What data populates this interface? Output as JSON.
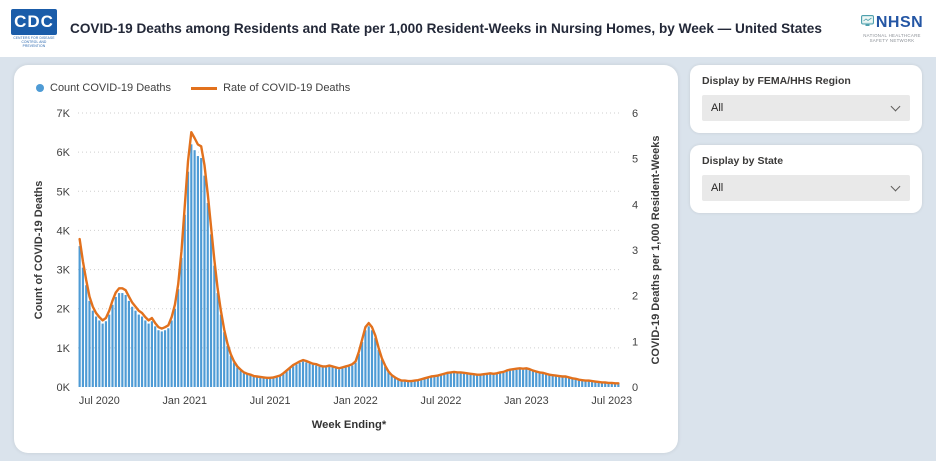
{
  "header": {
    "title": "COVID-19 Deaths among Residents and Rate per 1,000 Resident-Weeks in Nursing Homes, by Week — United States",
    "cdc_logo": {
      "text": "CDC",
      "subtext": "CENTERS FOR DISEASE CONTROL AND PREVENTION"
    },
    "nhsn_logo": {
      "text": "NHSN",
      "subtext_line1": "NATIONAL HEALTHCARE",
      "subtext_line2": "SAFETY NETWORK"
    }
  },
  "filters": [
    {
      "label": "Display by FEMA/HHS Region",
      "value": "All"
    },
    {
      "label": "Display by State",
      "value": "All"
    }
  ],
  "colors": {
    "bar_blue": "#4E9BD5",
    "line_orange": "#E2711D",
    "page_bg": "#DAE3EC",
    "card_bg": "#FFFFFF",
    "footer_bar": "#3D5448",
    "cdc_blue": "#1A5CA9",
    "nhsn_blue": "#2456A4",
    "grid_gray": "#CFCFCF",
    "tick_text": "#3F3F3F"
  },
  "chart_data": {
    "type": "bar",
    "subtype": "combo-bar-line-weekly",
    "title": "",
    "xlabel": "Week Ending*",
    "x_unit": "week",
    "x_start_week_ending": "2020-05-24",
    "x_ticks": [
      {
        "index": 6,
        "label": "Jul 2020"
      },
      {
        "index": 32,
        "label": "Jan 2021"
      },
      {
        "index": 58,
        "label": "Jul 2021"
      },
      {
        "index": 84,
        "label": "Jan 2022"
      },
      {
        "index": 110,
        "label": "Jul 2022"
      },
      {
        "index": 136,
        "label": "Jan 2023"
      },
      {
        "index": 162,
        "label": "Jul 2023"
      }
    ],
    "y_left": {
      "title": "Count of COVID-19 Deaths",
      "min": 0,
      "max": 7000,
      "tick_labels": [
        "0K",
        "1K",
        "2K",
        "3K",
        "4K",
        "5K",
        "6K",
        "7K"
      ]
    },
    "y_right": {
      "title": "COVID-19 Deaths per 1,000 Resident-Weeks",
      "min": 0,
      "max": 6,
      "tick_labels": [
        "0",
        "1",
        "2",
        "3",
        "4",
        "5",
        "6"
      ]
    },
    "grid": "dotted-horizontal-left-axis",
    "legend_position": "top-left",
    "series": [
      {
        "name": "Count COVID-19 Deaths",
        "type": "bar",
        "axis": "left",
        "color": "#4E9BD5",
        "values": [
          3600,
          3050,
          2600,
          2200,
          1950,
          1800,
          1700,
          1620,
          1680,
          1850,
          2100,
          2300,
          2400,
          2400,
          2350,
          2200,
          2050,
          1950,
          1850,
          1800,
          1700,
          1620,
          1680,
          1550,
          1450,
          1420,
          1450,
          1500,
          1700,
          2000,
          2500,
          3300,
          4400,
          5500,
          6200,
          6050,
          5900,
          5850,
          5400,
          4700,
          3900,
          3100,
          2400,
          1850,
          1400,
          1050,
          800,
          620,
          500,
          420,
          360,
          320,
          300,
          270,
          250,
          240,
          230,
          220,
          220,
          230,
          250,
          280,
          330,
          400,
          470,
          530,
          580,
          620,
          650,
          630,
          600,
          570,
          550,
          520,
          500,
          500,
          520,
          500,
          480,
          450,
          480,
          500,
          520,
          550,
          620,
          850,
          1150,
          1450,
          1550,
          1450,
          1250,
          950,
          700,
          520,
          380,
          290,
          230,
          190,
          160,
          150,
          140,
          140,
          150,
          170,
          190,
          210,
          230,
          250,
          270,
          280,
          300,
          320,
          340,
          360,
          370,
          360,
          350,
          340,
          330,
          320,
          310,
          300,
          300,
          310,
          320,
          330,
          320,
          330,
          350,
          370,
          400,
          420,
          430,
          440,
          450,
          440,
          450,
          430,
          400,
          380,
          360,
          340,
          320,
          300,
          290,
          280,
          270,
          260,
          250,
          230,
          210,
          200,
          180,
          170,
          160,
          150,
          140,
          130,
          120,
          110,
          110,
          100,
          100,
          90,
          90
        ]
      },
      {
        "name": "Rate of COVID-19 Deaths",
        "type": "line",
        "axis": "right",
        "color": "#E2711D",
        "values": [
          3.24,
          2.75,
          2.34,
          1.98,
          1.76,
          1.62,
          1.53,
          1.46,
          1.51,
          1.67,
          1.89,
          2.07,
          2.16,
          2.16,
          2.12,
          1.98,
          1.85,
          1.76,
          1.67,
          1.62,
          1.53,
          1.46,
          1.51,
          1.4,
          1.31,
          1.28,
          1.31,
          1.35,
          1.53,
          1.8,
          2.25,
          2.97,
          3.96,
          4.95,
          5.58,
          5.45,
          5.31,
          5.27,
          4.86,
          4.23,
          3.51,
          2.79,
          2.16,
          1.67,
          1.26,
          0.95,
          0.72,
          0.56,
          0.45,
          0.38,
          0.32,
          0.29,
          0.27,
          0.24,
          0.23,
          0.22,
          0.21,
          0.2,
          0.2,
          0.21,
          0.23,
          0.25,
          0.3,
          0.36,
          0.42,
          0.48,
          0.52,
          0.56,
          0.59,
          0.57,
          0.54,
          0.51,
          0.5,
          0.47,
          0.45,
          0.45,
          0.47,
          0.45,
          0.43,
          0.41,
          0.43,
          0.45,
          0.47,
          0.5,
          0.56,
          0.77,
          1.04,
          1.31,
          1.4,
          1.31,
          1.13,
          0.86,
          0.63,
          0.47,
          0.34,
          0.26,
          0.21,
          0.17,
          0.14,
          0.14,
          0.13,
          0.13,
          0.14,
          0.15,
          0.17,
          0.19,
          0.21,
          0.23,
          0.24,
          0.25,
          0.27,
          0.29,
          0.31,
          0.32,
          0.33,
          0.32,
          0.32,
          0.31,
          0.3,
          0.29,
          0.28,
          0.27,
          0.27,
          0.28,
          0.29,
          0.3,
          0.29,
          0.3,
          0.32,
          0.33,
          0.36,
          0.38,
          0.39,
          0.4,
          0.41,
          0.4,
          0.41,
          0.39,
          0.36,
          0.34,
          0.32,
          0.31,
          0.29,
          0.27,
          0.26,
          0.25,
          0.24,
          0.23,
          0.23,
          0.21,
          0.19,
          0.18,
          0.16,
          0.15,
          0.14,
          0.14,
          0.13,
          0.12,
          0.11,
          0.1,
          0.1,
          0.09,
          0.09,
          0.08,
          0.08
        ]
      }
    ]
  }
}
